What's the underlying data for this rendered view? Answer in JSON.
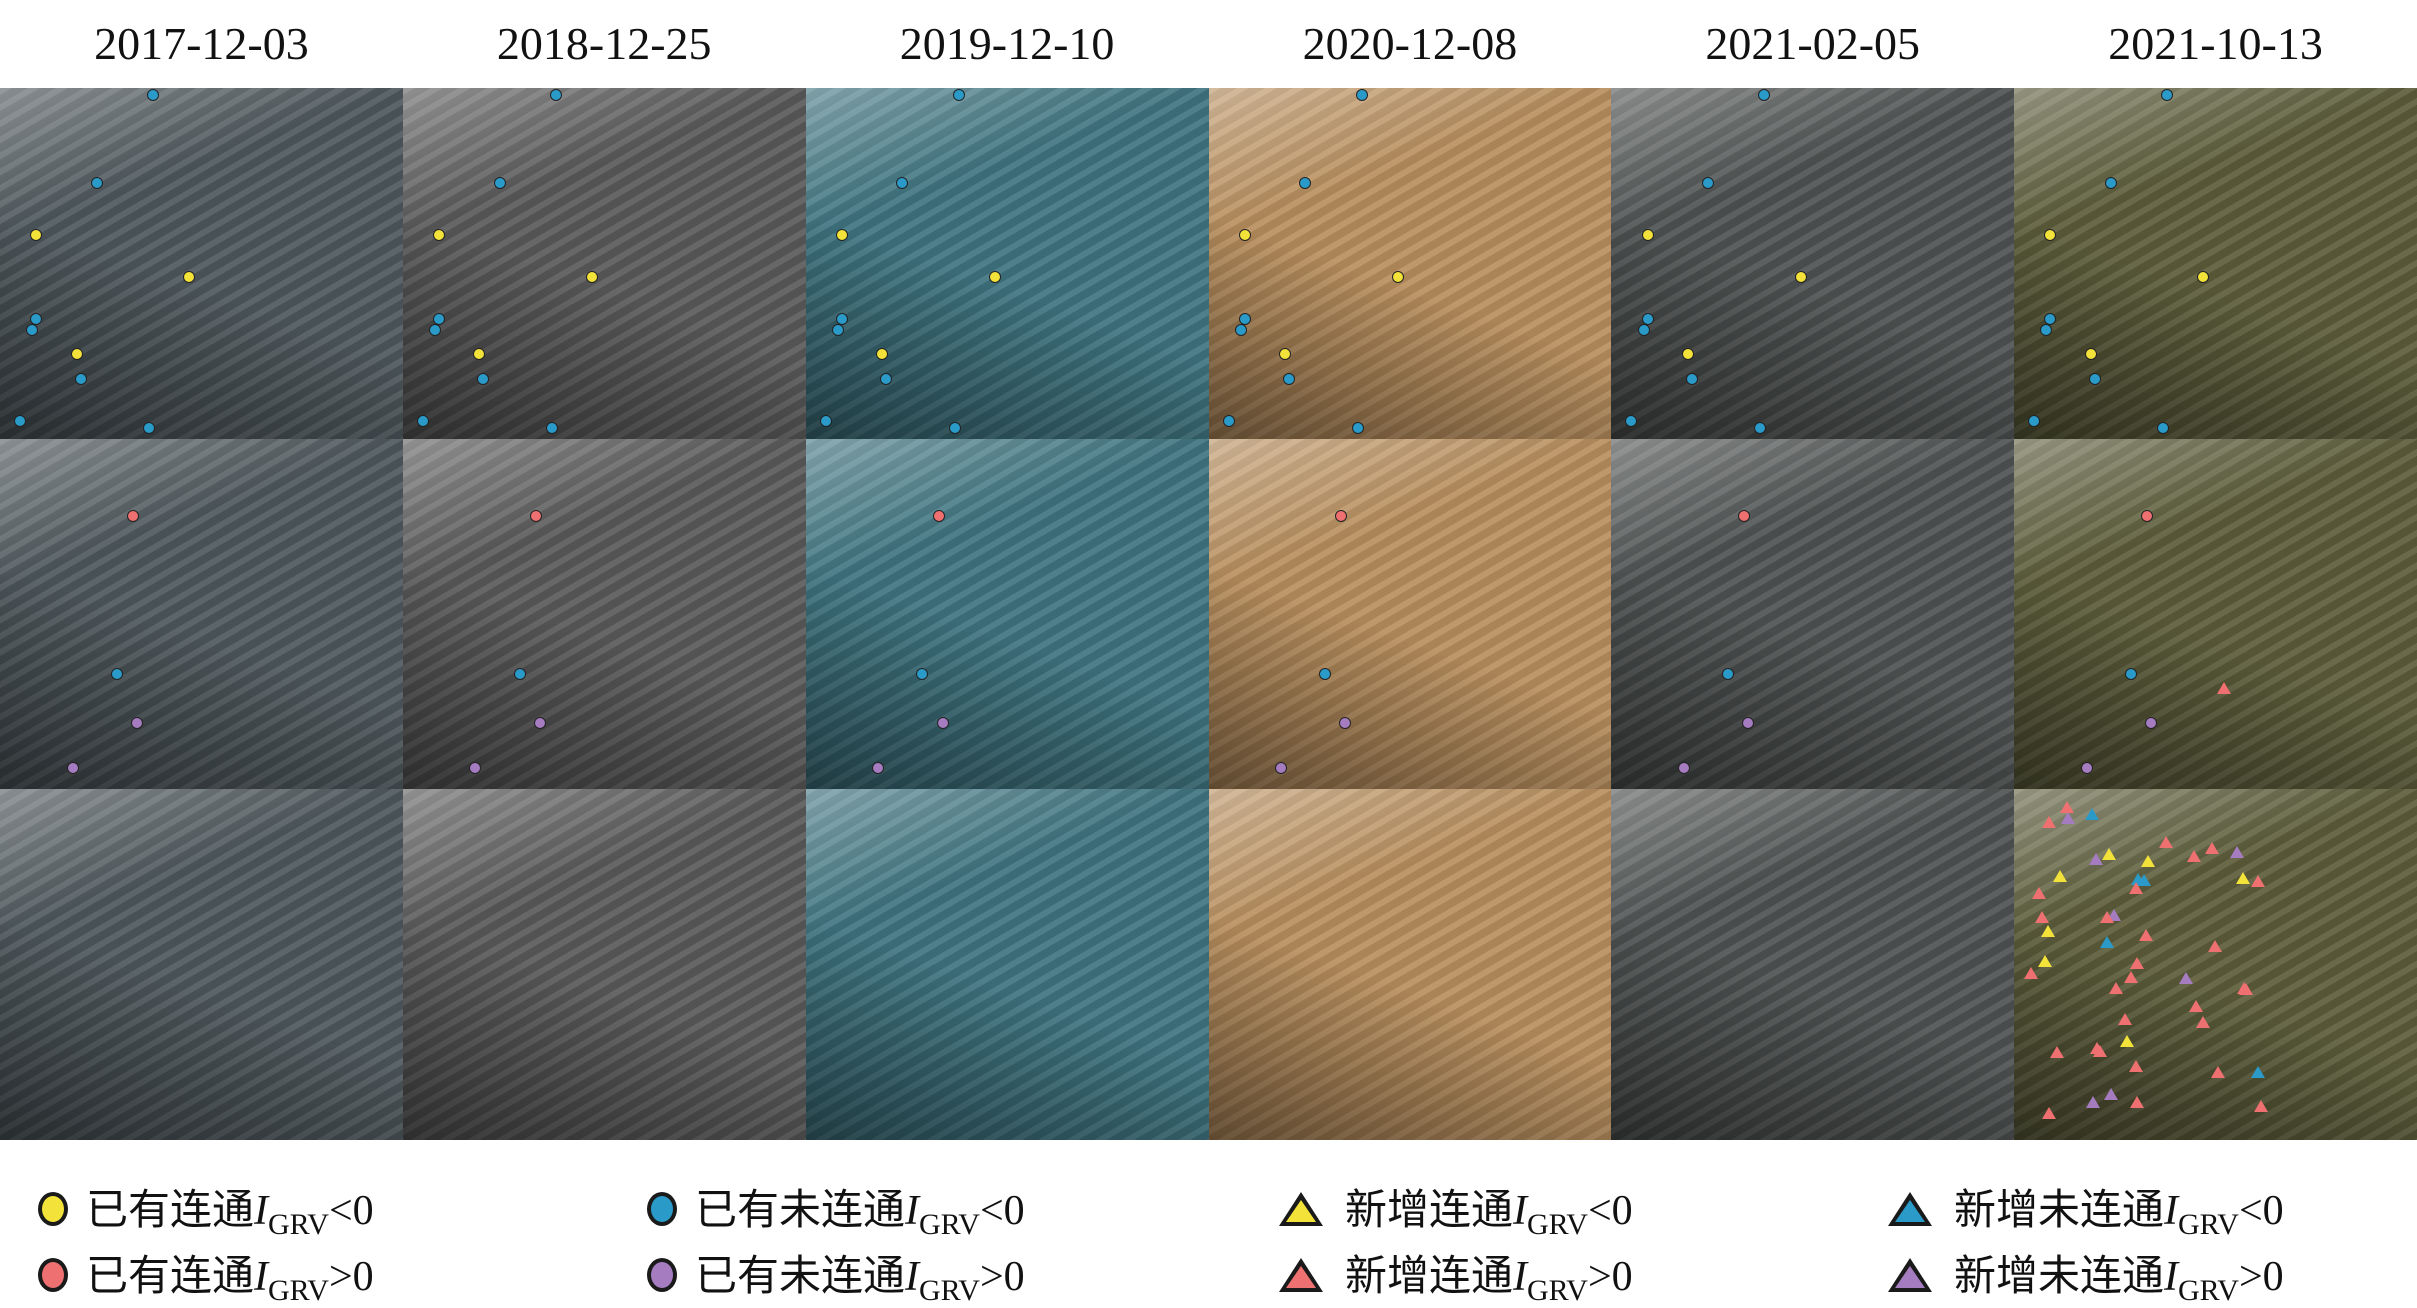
{
  "dates": [
    "2017-12-03",
    "2018-12-25",
    "2019-12-10",
    "2020-12-08",
    "2021-02-05",
    "2021-10-13"
  ],
  "panel_tints": [
    "#4e585c",
    "#5a5a5a",
    "#3f7480",
    "#b98f5e",
    "#4f5352",
    "#5d5d3c"
  ],
  "marker_colors": {
    "yellow": "#f2e23a",
    "red": "#ee7070",
    "blue": "#2a9ac8",
    "purple": "#a57cc0"
  },
  "legend": [
    {
      "shape": "circle",
      "color": "yellow",
      "text": "已有连通",
      "var": "I",
      "sub": "GRV",
      "op": "<0"
    },
    {
      "shape": "circle",
      "color": "red",
      "text": "已有连通",
      "var": "I",
      "sub": "GRV",
      "op": ">0"
    },
    {
      "shape": "circle",
      "color": "blue",
      "text": "已有未连通",
      "var": "I",
      "sub": "GRV",
      "op": "<0"
    },
    {
      "shape": "circle",
      "color": "purple",
      "text": "已有未连通",
      "var": "I",
      "sub": "GRV",
      "op": ">0"
    },
    {
      "shape": "triangle",
      "color": "yellow",
      "text": "新增连通",
      "var": "I",
      "sub": "GRV",
      "op": "<0"
    },
    {
      "shape": "triangle",
      "color": "red",
      "text": "新增连通",
      "var": "I",
      "sub": "GRV",
      "op": ">0"
    },
    {
      "shape": "triangle",
      "color": "blue",
      "text": "新增未连通",
      "var": "I",
      "sub": "GRV",
      "op": "<0"
    },
    {
      "shape": "triangle",
      "color": "purple",
      "text": "新增未连通",
      "var": "I",
      "sub": "GRV",
      "op": ">0"
    }
  ]
}
